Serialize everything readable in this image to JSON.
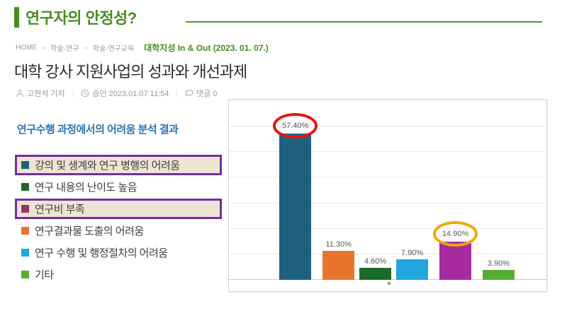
{
  "page": {
    "title": "연구자의 안정성?"
  },
  "breadcrumb": {
    "items": [
      "HOME",
      "학술·연구",
      "학술·연구교육"
    ],
    "separator": ">",
    "source": "대학지성 In & Out (2023. 01. 07.)"
  },
  "article": {
    "headline": "대학 강사 지원사업의 성과와 개선과제",
    "meta": {
      "author": "고현석 기자",
      "approved": "승인 2023.01.07 11:54",
      "comments": "댓글 0"
    }
  },
  "analysis": {
    "section_title": "연구수행 과정에서의 어려움 분석 결과",
    "highlight_border_color": "#7030a0",
    "highlight_bg_color": "#ece5d3",
    "legend": [
      {
        "label": "강의 및 생계와 연구 병행의 어려움",
        "color": "#20607f",
        "highlighted": true
      },
      {
        "label": "연구 내용의 난이도 높음",
        "color": "#1d6b2a",
        "highlighted": false
      },
      {
        "label": "연구비 부족",
        "color": "#993366",
        "highlighted": true
      },
      {
        "label": "연구결과물 도출의 어려움",
        "color": "#e8752e",
        "highlighted": false
      },
      {
        "label": "연구 수행 및 행정절차의 어려움",
        "color": "#22a6df",
        "highlighted": false
      },
      {
        "label": "기타",
        "color": "#55ad30",
        "highlighted": false
      }
    ]
  },
  "chart_data": {
    "type": "bar",
    "title": "",
    "xlabel": "",
    "ylabel": "",
    "ylim": [
      0,
      70
    ],
    "grid": true,
    "gridline_step": 10,
    "categories": [
      "강의 및 생계와 연구 병행의 어려움",
      "연구결과물 도출의 어려움",
      "연구 내용의 난이도 높음",
      "연구 수행 및 행정절차의 어려움",
      "연구비 부족",
      "기타"
    ],
    "values": [
      57.4,
      11.3,
      4.6,
      7.9,
      14.9,
      3.9
    ],
    "labels": [
      "57.40%",
      "11.30%",
      "4.60%",
      "7.90%",
      "14.90%",
      "3.90%"
    ],
    "colors": [
      "#20607f",
      "#e8752e",
      "#1d6b2a",
      "#22a6df",
      "#a62aa0",
      "#55ad30"
    ],
    "annotations": [
      {
        "target_index": 0,
        "shape": "ellipse",
        "color": "#e8150c"
      },
      {
        "target_index": 4,
        "shape": "ellipse",
        "color": "#f2a60a"
      }
    ]
  }
}
